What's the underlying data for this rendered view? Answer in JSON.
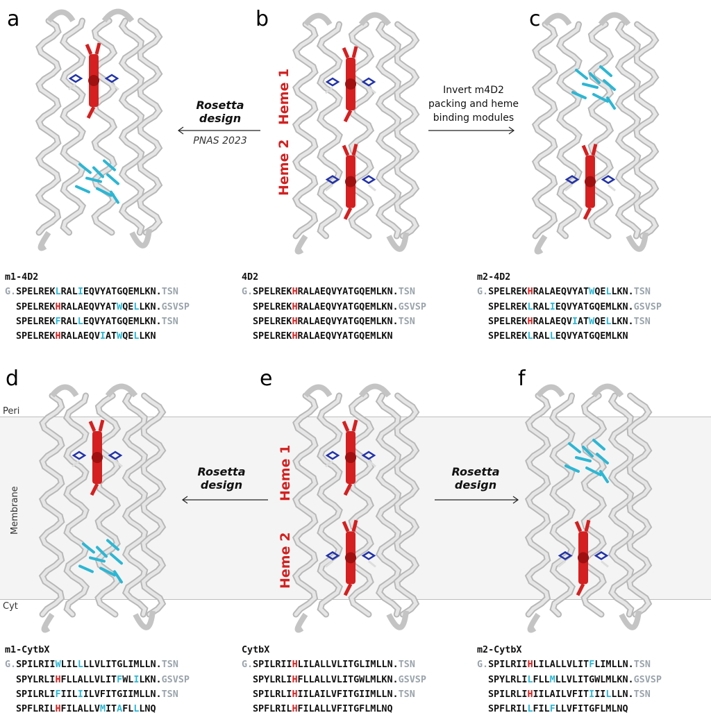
{
  "panels": {
    "a": {
      "letter": "a",
      "name": "m1-4D2",
      "seq": [
        [
          [
            "G.",
            "g"
          ],
          [
            "SPELREK",
            "k"
          ],
          [
            "L",
            "c"
          ],
          [
            "RAL",
            "k"
          ],
          [
            "I",
            "c"
          ],
          [
            "EQVYATGQEMLKN.",
            "k"
          ],
          [
            "TSN",
            "g"
          ]
        ],
        [
          [
            "SPELREK",
            "k"
          ],
          [
            "H",
            "r"
          ],
          [
            "RALAEQVYAT",
            "k"
          ],
          [
            "W",
            "c"
          ],
          [
            "QE",
            "k"
          ],
          [
            "L",
            "c"
          ],
          [
            "LKN.",
            "k"
          ],
          [
            "GSVSP",
            "g"
          ]
        ],
        [
          [
            "SPELREK",
            "k"
          ],
          [
            "F",
            "c"
          ],
          [
            "RAL",
            "k"
          ],
          [
            "L",
            "c"
          ],
          [
            "EQVYATGQEMLKN.",
            "k"
          ],
          [
            "TSN",
            "g"
          ]
        ],
        [
          [
            "SPELREK",
            "k"
          ],
          [
            "H",
            "r"
          ],
          [
            "RALAEQV",
            "k"
          ],
          [
            "I",
            "c"
          ],
          [
            "AT",
            "k"
          ],
          [
            "W",
            "c"
          ],
          [
            "QE",
            "k"
          ],
          [
            "L",
            "c"
          ],
          [
            "LKN",
            "k"
          ]
        ]
      ]
    },
    "b": {
      "letter": "b",
      "name": "4D2",
      "seq": [
        [
          [
            "G.",
            "g"
          ],
          [
            "SPELREK",
            "k"
          ],
          [
            "H",
            "r"
          ],
          [
            "RALAEQVYATGQEMLKN.",
            "k"
          ],
          [
            "TSN",
            "g"
          ]
        ],
        [
          [
            "SPELREK",
            "k"
          ],
          [
            "H",
            "r"
          ],
          [
            "RALAEQVYATGQEMLKN.",
            "k"
          ],
          [
            "GSVSP",
            "g"
          ]
        ],
        [
          [
            "SPELREK",
            "k"
          ],
          [
            "H",
            "r"
          ],
          [
            "RALAEQVYATGQEMLKN.",
            "k"
          ],
          [
            "TSN",
            "g"
          ]
        ],
        [
          [
            "SPELREK",
            "k"
          ],
          [
            "H",
            "r"
          ],
          [
            "RALAEQVYATGQEMLKN",
            "k"
          ]
        ]
      ]
    },
    "c": {
      "letter": "c",
      "name": "m2-4D2",
      "seq": [
        [
          [
            "G.",
            "g"
          ],
          [
            "SPELREK",
            "k"
          ],
          [
            "H",
            "r"
          ],
          [
            "RALAEQVYAT",
            "k"
          ],
          [
            "W",
            "c"
          ],
          [
            "QE",
            "k"
          ],
          [
            "L",
            "c"
          ],
          [
            "LKN.",
            "k"
          ],
          [
            "TSN",
            "g"
          ]
        ],
        [
          [
            "SPELREK",
            "k"
          ],
          [
            "L",
            "c"
          ],
          [
            "RAL",
            "k"
          ],
          [
            "I",
            "c"
          ],
          [
            "EQVYATGQEMLKN.",
            "k"
          ],
          [
            "GSVSP",
            "g"
          ]
        ],
        [
          [
            "SPELREK",
            "k"
          ],
          [
            "H",
            "r"
          ],
          [
            "RALAEQV",
            "k"
          ],
          [
            "I",
            "c"
          ],
          [
            "AT",
            "k"
          ],
          [
            "W",
            "c"
          ],
          [
            "QE",
            "k"
          ],
          [
            "L",
            "c"
          ],
          [
            "LKN.",
            "k"
          ],
          [
            "TSN",
            "g"
          ]
        ],
        [
          [
            "SPELREK",
            "k"
          ],
          [
            "L",
            "c"
          ],
          [
            "RAL",
            "k"
          ],
          [
            "L",
            "c"
          ],
          [
            "EQVYATGQEMLKN",
            "k"
          ]
        ]
      ]
    },
    "d": {
      "letter": "d",
      "name": "m1-CytbX",
      "seq": [
        [
          [
            "G.",
            "g"
          ],
          [
            "SPILRII",
            "k"
          ],
          [
            "W",
            "c"
          ],
          [
            "LIL",
            "k"
          ],
          [
            "L",
            "c"
          ],
          [
            "LLVLITGLIMLLN.",
            "k"
          ],
          [
            "TSN",
            "g"
          ]
        ],
        [
          [
            "SPYLRLI",
            "k"
          ],
          [
            "H",
            "r"
          ],
          [
            "FLLALLVLIT",
            "k"
          ],
          [
            "F",
            "c"
          ],
          [
            "WL",
            "k"
          ],
          [
            "I",
            "c"
          ],
          [
            "LKN.",
            "k"
          ],
          [
            "GSVSP",
            "g"
          ]
        ],
        [
          [
            "SPILRLI",
            "k"
          ],
          [
            "F",
            "c"
          ],
          [
            "IIL",
            "k"
          ],
          [
            "I",
            "c"
          ],
          [
            "ILVFITGIIMLLN.",
            "k"
          ],
          [
            "TSN",
            "g"
          ]
        ],
        [
          [
            "SPFLRIL",
            "k"
          ],
          [
            "H",
            "r"
          ],
          [
            "FILALLV",
            "k"
          ],
          [
            "M",
            "c"
          ],
          [
            "IT",
            "k"
          ],
          [
            "A",
            "c"
          ],
          [
            "FL",
            "k"
          ],
          [
            "L",
            "c"
          ],
          [
            "LNQ",
            "k"
          ]
        ]
      ]
    },
    "e": {
      "letter": "e",
      "name": "CytbX",
      "seq": [
        [
          [
            "G.",
            "g"
          ],
          [
            "SPILRII",
            "k"
          ],
          [
            "H",
            "r"
          ],
          [
            "LILALLVLITGLIMLLN.",
            "k"
          ],
          [
            "TSN",
            "g"
          ]
        ],
        [
          [
            "SPYLRLI",
            "k"
          ],
          [
            "H",
            "r"
          ],
          [
            "FLLALLVLITGWLMLKN.",
            "k"
          ],
          [
            "GSVSP",
            "g"
          ]
        ],
        [
          [
            "SPILRLI",
            "k"
          ],
          [
            "H",
            "r"
          ],
          [
            "IILAILVFITGIIMLLN.",
            "k"
          ],
          [
            "TSN",
            "g"
          ]
        ],
        [
          [
            "SPFLRIL",
            "k"
          ],
          [
            "H",
            "r"
          ],
          [
            "FILALLVFITGFLMLNQ",
            "k"
          ]
        ]
      ]
    },
    "f": {
      "letter": "f",
      "name": "m2-CytbX",
      "seq": [
        [
          [
            "G.",
            "g"
          ],
          [
            "SPILRII",
            "k"
          ],
          [
            "H",
            "r"
          ],
          [
            "LILALLVLIT",
            "k"
          ],
          [
            "F",
            "c"
          ],
          [
            "LIMLLN.",
            "k"
          ],
          [
            "TSN",
            "g"
          ]
        ],
        [
          [
            "SPYLRLI",
            "k"
          ],
          [
            "L",
            "c"
          ],
          [
            "FLL",
            "k"
          ],
          [
            "M",
            "c"
          ],
          [
            "LLVLITGWLMLKN.",
            "k"
          ],
          [
            "GSVSP",
            "g"
          ]
        ],
        [
          [
            "SPILRLI",
            "k"
          ],
          [
            "H",
            "r"
          ],
          [
            "IILAILVFIT",
            "k"
          ],
          [
            "I",
            "c"
          ],
          [
            "II",
            "k"
          ],
          [
            "L",
            "c"
          ],
          [
            "LLN.",
            "k"
          ],
          [
            "TSN",
            "g"
          ]
        ],
        [
          [
            "SPFLRIL",
            "k"
          ],
          [
            "L",
            "c"
          ],
          [
            "FIL",
            "k"
          ],
          [
            "F",
            "c"
          ],
          [
            "LLVFITGFLMLNQ",
            "k"
          ]
        ]
      ]
    }
  },
  "arrows": {
    "ab": {
      "title": "Rosetta\ndesign",
      "sub": "PNAS 2023",
      "direction": "left"
    },
    "bc": {
      "note": "Invert m4D2\npacking and heme\nbinding modules",
      "direction": "right"
    },
    "de": {
      "title": "Rosetta\ndesign",
      "direction": "left"
    },
    "ef": {
      "title": "Rosetta\ndesign",
      "direction": "right"
    }
  },
  "heme_labels": {
    "heme1": "Heme 1",
    "heme2": "Heme 2"
  },
  "membrane": {
    "peri": "Peri",
    "membrane": "Membrane",
    "cyt": "Cyt"
  },
  "colors": {
    "heme": "#d42020",
    "packing": "#2bb7d4",
    "backbone": "#d8d8d8",
    "flanking": "#9aa4ab",
    "membrane": "#f4f4f4"
  }
}
